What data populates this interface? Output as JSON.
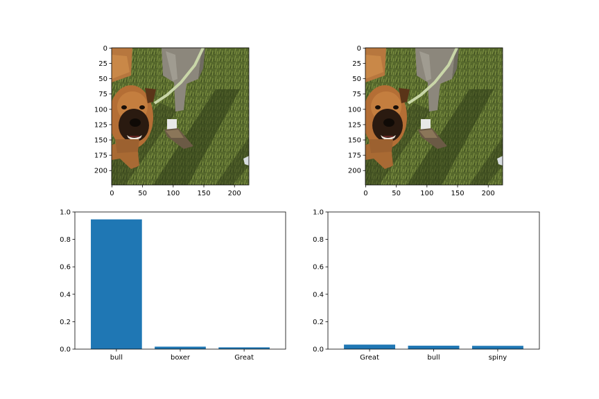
{
  "image_axes": [
    {
      "image": "dog-on-leash-photo",
      "xticks": [
        "0",
        "50",
        "100",
        "150",
        "200"
      ],
      "yticks": [
        "0",
        "25",
        "50",
        "75",
        "100",
        "125",
        "150",
        "175",
        "200"
      ],
      "xlim": [
        0,
        224
      ],
      "ylim": [
        224,
        0
      ]
    },
    {
      "image": "dog-on-leash-photo",
      "xticks": [
        "0",
        "50",
        "100",
        "150",
        "200"
      ],
      "yticks": [
        "0",
        "25",
        "50",
        "75",
        "100",
        "125",
        "150",
        "175",
        "200"
      ],
      "xlim": [
        0,
        224
      ],
      "ylim": [
        224,
        0
      ]
    }
  ],
  "chart_data": [
    {
      "type": "bar",
      "categories": [
        "bull",
        "boxer",
        "Great"
      ],
      "values": [
        0.946,
        0.018,
        0.013
      ],
      "ylim": [
        0,
        1
      ],
      "yticks": [
        "0.0",
        "0.2",
        "0.4",
        "0.6",
        "0.8",
        "1.0"
      ],
      "color": "#1f77b4"
    },
    {
      "type": "bar",
      "categories": [
        "Great",
        "bull",
        "spiny"
      ],
      "values": [
        0.033,
        0.025,
        0.024
      ],
      "ylim": [
        0,
        1
      ],
      "yticks": [
        "0.0",
        "0.2",
        "0.4",
        "0.6",
        "0.8",
        "1.0"
      ],
      "color": "#1f77b4"
    }
  ]
}
